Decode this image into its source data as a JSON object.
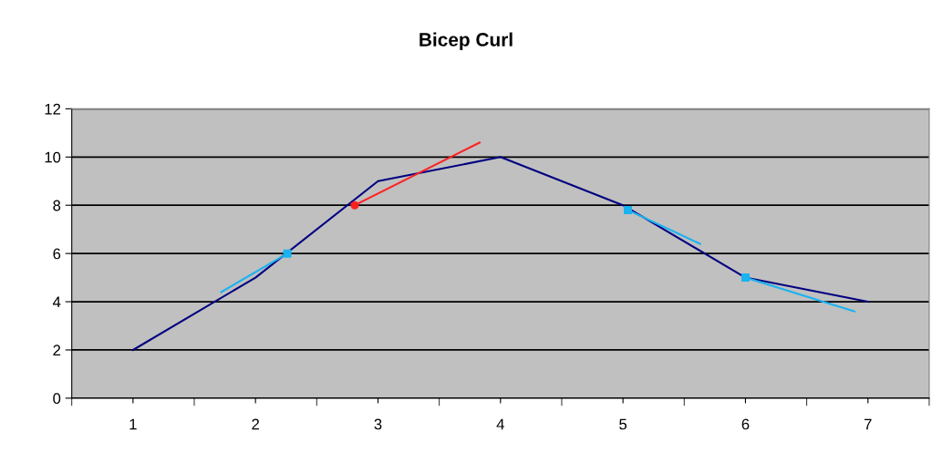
{
  "chart_data": {
    "type": "line",
    "title": "Bicep Curl",
    "xlim": [
      0.5,
      7.5
    ],
    "ylim": [
      0,
      12
    ],
    "xticks": [
      1,
      2,
      3,
      4,
      5,
      6,
      7
    ],
    "yticks": [
      0,
      2,
      4,
      6,
      8,
      10,
      12
    ],
    "grid": "y",
    "marker": "none",
    "line_style": "solid",
    "series": [
      {
        "color": "#000080",
        "x": [
          1,
          2,
          3,
          4,
          5,
          6,
          7
        ],
        "values": [
          2,
          5,
          9,
          10,
          8,
          5,
          4
        ]
      },
      {
        "color": "#1ab2f0",
        "x": [
          1.72,
          2.26
        ],
        "values": [
          4.4,
          6.0
        ]
      },
      {
        "type": "scatter",
        "marker": "square",
        "color": "#1ab2f0",
        "x": [
          2.26
        ],
        "values": [
          6.0
        ]
      },
      {
        "color": "#ff2020",
        "x": [
          2.81,
          3.83
        ],
        "values": [
          8.0,
          10.6
        ]
      },
      {
        "type": "scatter",
        "marker": "circle",
        "color": "#ff2020",
        "x": [
          2.81
        ],
        "values": [
          8.0
        ]
      },
      {
        "color": "#1ab2f0",
        "x": [
          5.04,
          5.63
        ],
        "values": [
          7.8,
          6.4
        ]
      },
      {
        "type": "scatter",
        "marker": "square",
        "color": "#1ab2f0",
        "x": [
          5.04
        ],
        "values": [
          7.8
        ]
      },
      {
        "color": "#1ab2f0",
        "x": [
          6.0,
          6.89
        ],
        "values": [
          5.0,
          3.6
        ]
      },
      {
        "type": "scatter",
        "marker": "square",
        "color": "#1ab2f0",
        "x": [
          6.0
        ],
        "values": [
          5.0
        ]
      }
    ]
  }
}
